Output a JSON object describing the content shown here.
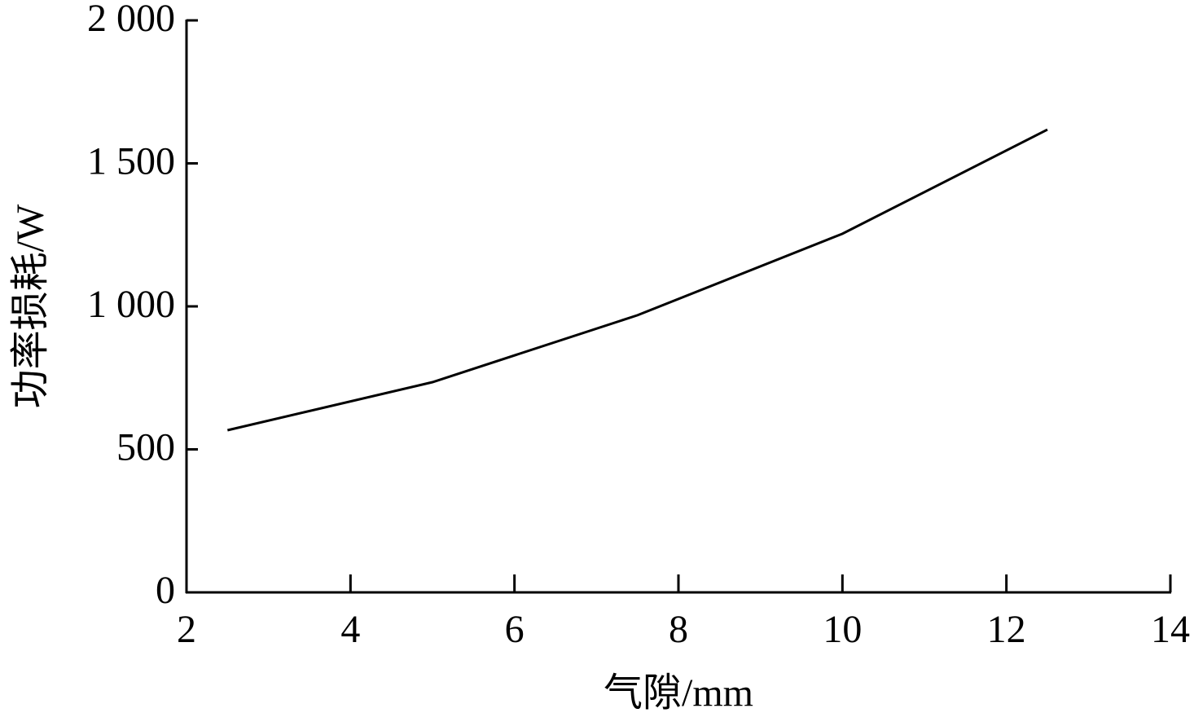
{
  "chart_data": {
    "type": "line",
    "x_label": "气隙/mm",
    "y_label": "功率损耗/W",
    "x": [
      2.5,
      5,
      7.5,
      10,
      12.5
    ],
    "series": [
      {
        "color": "#000000",
        "values": [
          567,
          735,
          969,
          1254,
          1618
        ]
      }
    ],
    "xlim": [
      2,
      14
    ],
    "xticks": [
      2,
      4,
      6,
      8,
      10,
      12,
      14
    ],
    "ylim": [
      0,
      2000
    ],
    "yticks": [
      0,
      500,
      {
        "value": 1000,
        "label": "1 000"
      },
      {
        "value": 1500,
        "label": "1 500"
      },
      {
        "value": 2000,
        "label": "2 000"
      }
    ],
    "grid": false
  }
}
